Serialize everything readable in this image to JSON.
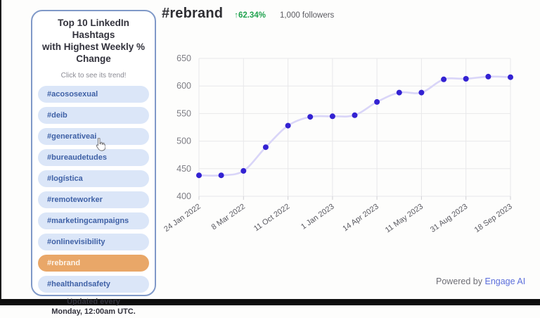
{
  "sidebar": {
    "title_lines": [
      "Top 10 LinkedIn Hashtags",
      "with Highest Weekly %",
      "Change"
    ],
    "subtitle": "Click to see its trend!",
    "items": [
      {
        "label": "#acososexual",
        "active": false
      },
      {
        "label": "#deib",
        "active": false
      },
      {
        "label": "#generativeai",
        "active": false
      },
      {
        "label": "#bureaudetudes",
        "active": false
      },
      {
        "label": "#logística",
        "active": false
      },
      {
        "label": "#remoteworker",
        "active": false
      },
      {
        "label": "#marketingcampaigns",
        "active": false
      },
      {
        "label": "#onlinevisibility",
        "active": false
      },
      {
        "label": "#rebrand",
        "active": true
      },
      {
        "label": "#healthandsafety",
        "active": false
      }
    ],
    "footer_line1": "Updated every",
    "footer_line2": "Monday, 12:00am UTC."
  },
  "header": {
    "title": "#rebrand",
    "change": "↑62.34%",
    "followers": "1,000 followers"
  },
  "chart_data": {
    "type": "line",
    "title": "",
    "x_labels": [
      "24 Jan 2022",
      "",
      "8 Mar 2022",
      "",
      "11 Oct 2022",
      "",
      "1 Jan 2023",
      "",
      "14 Apr 2023",
      "",
      "11 May 2023",
      "",
      "31 Aug 2023",
      "",
      "18 Sep 2023"
    ],
    "values": [
      438,
      438,
      446,
      489,
      528,
      544,
      545,
      547,
      571,
      588,
      588,
      612,
      613,
      617,
      616
    ],
    "ylim": [
      400,
      650
    ],
    "y_ticks": [
      400,
      450,
      500,
      550,
      600,
      650
    ],
    "grid": true,
    "legend": "none",
    "line_color": "#d9d5f8",
    "point_color": "#3322d2",
    "grid_color": "#e8e8ea",
    "tick_label_color": "#7d7d84",
    "x_label_color": "#5a5a61"
  },
  "footer": {
    "powered_by": "Powered by ",
    "brand": "Engage AI"
  }
}
